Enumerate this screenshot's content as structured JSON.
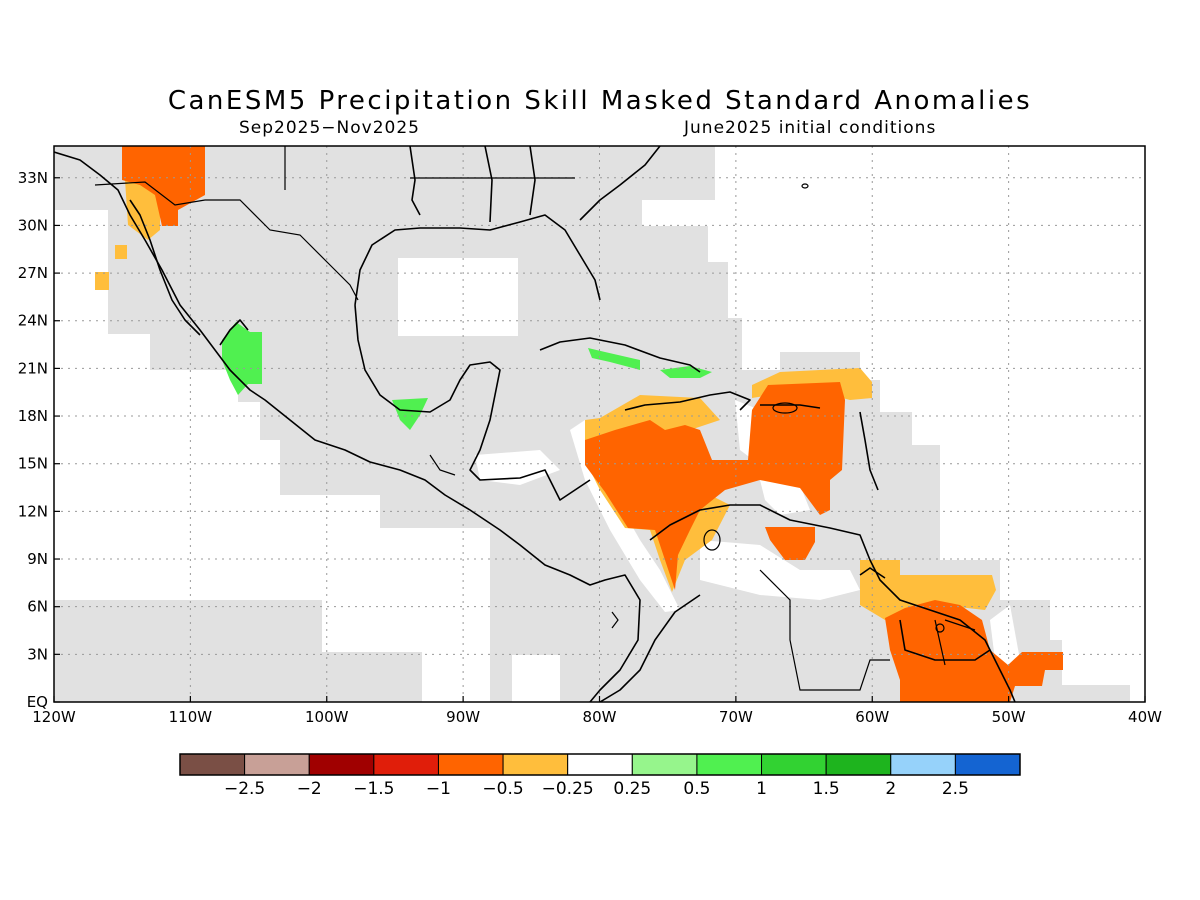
{
  "title": "CanESM5 Precipitation Skill Masked Standard Anomalies",
  "period": "Sep2025−Nov2025",
  "initial_conditions": "June2025 initial conditions",
  "map": {
    "lon_range": [
      -120,
      -40
    ],
    "lat_range": [
      0,
      35
    ],
    "lon_ticks": [
      {
        "value": -120,
        "label": "120W"
      },
      {
        "value": -110,
        "label": "110W"
      },
      {
        "value": -100,
        "label": "100W"
      },
      {
        "value": -90,
        "label": "90W"
      },
      {
        "value": -80,
        "label": "80W"
      },
      {
        "value": -70,
        "label": "70W"
      },
      {
        "value": -60,
        "label": "60W"
      },
      {
        "value": -50,
        "label": "50W"
      },
      {
        "value": -40,
        "label": "40W"
      }
    ],
    "lat_ticks": [
      {
        "value": 33,
        "label": "33N"
      },
      {
        "value": 30,
        "label": "30N"
      },
      {
        "value": 27,
        "label": "27N"
      },
      {
        "value": 24,
        "label": "24N"
      },
      {
        "value": 21,
        "label": "21N"
      },
      {
        "value": 18,
        "label": "18N"
      },
      {
        "value": 15,
        "label": "15N"
      },
      {
        "value": 12,
        "label": "12N"
      },
      {
        "value": 9,
        "label": "9N"
      },
      {
        "value": 6,
        "label": "6N"
      },
      {
        "value": 3,
        "label": "3N"
      },
      {
        "value": 0,
        "label": "EQ"
      }
    ],
    "grid": true,
    "mask_color": "#e1e1e1"
  },
  "colorbar": {
    "colors": [
      "#7a4f45",
      "#c8a097",
      "#a00000",
      "#e01e0a",
      "#ff6400",
      "#ffbe3c",
      "#ffffff",
      "#96f58c",
      "#50f050",
      "#32d232",
      "#1eb41e",
      "#96d2fa",
      "#1464d2"
    ],
    "labels": [
      "−2.5",
      "−2",
      "−1.5",
      "−1",
      "−0.5",
      "−0.25",
      "0.25",
      "0.5",
      "1",
      "1.5",
      "2",
      "2.5"
    ]
  }
}
